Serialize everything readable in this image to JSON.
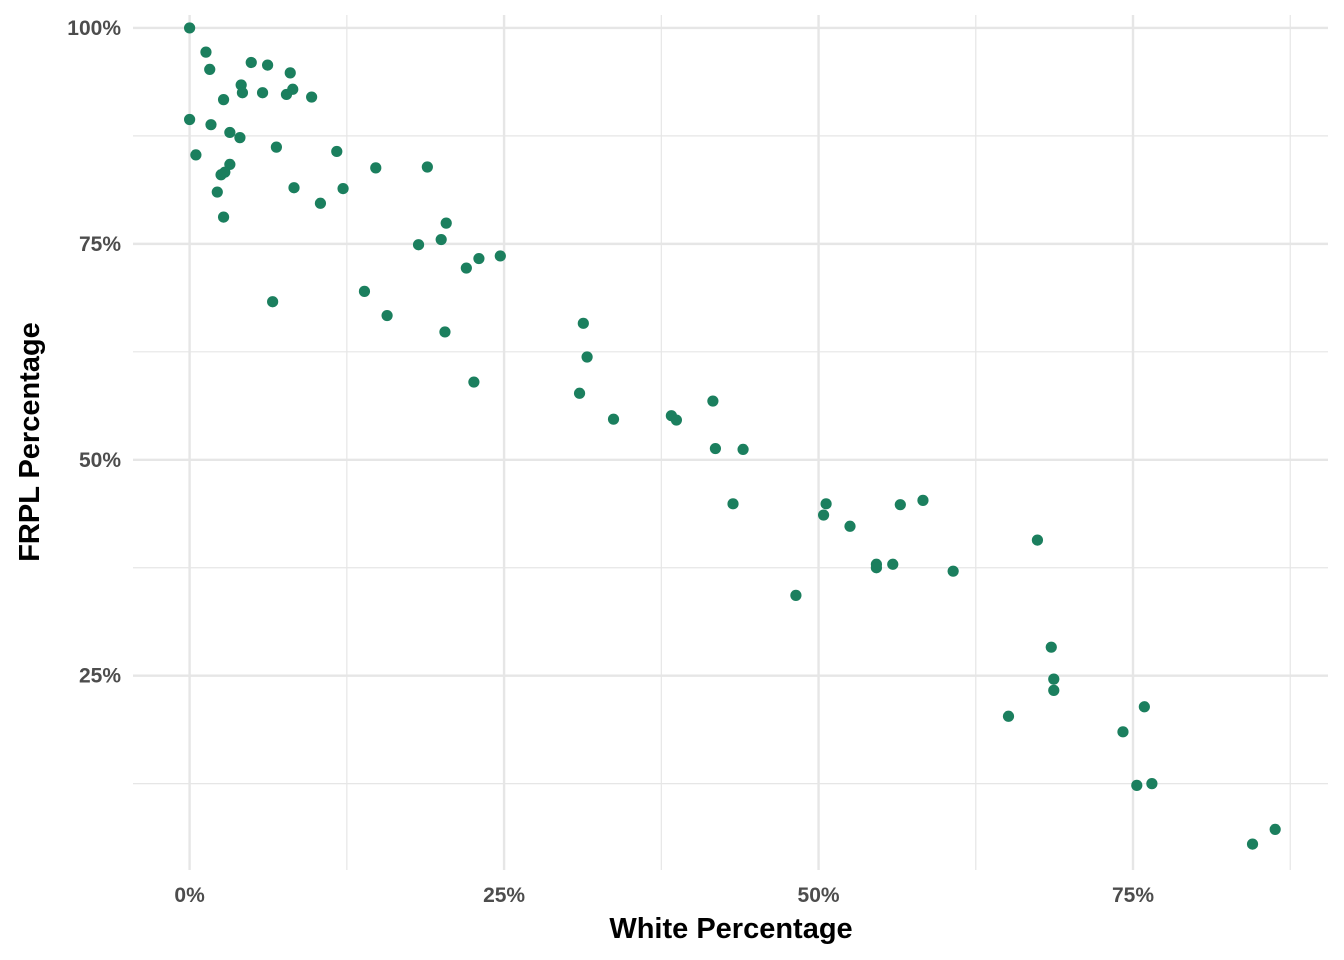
{
  "chart_data": {
    "type": "scatter",
    "xlabel": "White Percentage",
    "ylabel": "FRPL Percentage",
    "xlim": [
      -0.045,
      0.905
    ],
    "ylim": [
      0.025,
      1.015
    ],
    "x_ticks": [
      0,
      0.25,
      0.5,
      0.75
    ],
    "x_tick_labels": [
      "0%",
      "25%",
      "50%",
      "75%"
    ],
    "y_ticks": [
      0.25,
      0.5,
      0.75,
      1.0
    ],
    "y_tick_labels": [
      "25%",
      "50%",
      "75%",
      "100%"
    ],
    "grid": true,
    "point_color": "#1b7f5e",
    "gridline_color": "#e6e6e6",
    "points": [
      {
        "x": 0.0,
        "y": 1.0
      },
      {
        "x": 0.013,
        "y": 0.972
      },
      {
        "x": 0.016,
        "y": 0.952
      },
      {
        "x": 0.049,
        "y": 0.96
      },
      {
        "x": 0.062,
        "y": 0.957
      },
      {
        "x": 0.08,
        "y": 0.948
      },
      {
        "x": 0.041,
        "y": 0.934
      },
      {
        "x": 0.042,
        "y": 0.925
      },
      {
        "x": 0.058,
        "y": 0.925
      },
      {
        "x": 0.077,
        "y": 0.923
      },
      {
        "x": 0.082,
        "y": 0.929
      },
      {
        "x": 0.097,
        "y": 0.92
      },
      {
        "x": 0.027,
        "y": 0.917
      },
      {
        "x": 0.0,
        "y": 0.894
      },
      {
        "x": 0.017,
        "y": 0.888
      },
      {
        "x": 0.032,
        "y": 0.879
      },
      {
        "x": 0.04,
        "y": 0.873
      },
      {
        "x": 0.069,
        "y": 0.862
      },
      {
        "x": 0.005,
        "y": 0.853
      },
      {
        "x": 0.117,
        "y": 0.857
      },
      {
        "x": 0.032,
        "y": 0.842
      },
      {
        "x": 0.148,
        "y": 0.838
      },
      {
        "x": 0.189,
        "y": 0.839
      },
      {
        "x": 0.025,
        "y": 0.83
      },
      {
        "x": 0.028,
        "y": 0.833
      },
      {
        "x": 0.083,
        "y": 0.815
      },
      {
        "x": 0.122,
        "y": 0.814
      },
      {
        "x": 0.022,
        "y": 0.81
      },
      {
        "x": 0.104,
        "y": 0.797
      },
      {
        "x": 0.027,
        "y": 0.781
      },
      {
        "x": 0.204,
        "y": 0.774
      },
      {
        "x": 0.2,
        "y": 0.755
      },
      {
        "x": 0.182,
        "y": 0.749
      },
      {
        "x": 0.247,
        "y": 0.736
      },
      {
        "x": 0.23,
        "y": 0.733
      },
      {
        "x": 0.22,
        "y": 0.722
      },
      {
        "x": 0.139,
        "y": 0.695
      },
      {
        "x": 0.066,
        "y": 0.683
      },
      {
        "x": 0.157,
        "y": 0.667
      },
      {
        "x": 0.203,
        "y": 0.648
      },
      {
        "x": 0.313,
        "y": 0.658
      },
      {
        "x": 0.316,
        "y": 0.619
      },
      {
        "x": 0.226,
        "y": 0.59
      },
      {
        "x": 0.31,
        "y": 0.577
      },
      {
        "x": 0.416,
        "y": 0.568
      },
      {
        "x": 0.337,
        "y": 0.547
      },
      {
        "x": 0.383,
        "y": 0.551
      },
      {
        "x": 0.387,
        "y": 0.546
      },
      {
        "x": 0.418,
        "y": 0.513
      },
      {
        "x": 0.44,
        "y": 0.512
      },
      {
        "x": 0.432,
        "y": 0.449
      },
      {
        "x": 0.506,
        "y": 0.449
      },
      {
        "x": 0.504,
        "y": 0.436
      },
      {
        "x": 0.525,
        "y": 0.423
      },
      {
        "x": 0.565,
        "y": 0.448
      },
      {
        "x": 0.583,
        "y": 0.453
      },
      {
        "x": 0.546,
        "y": 0.379
      },
      {
        "x": 0.546,
        "y": 0.375
      },
      {
        "x": 0.559,
        "y": 0.379
      },
      {
        "x": 0.607,
        "y": 0.371
      },
      {
        "x": 0.674,
        "y": 0.407
      },
      {
        "x": 0.482,
        "y": 0.343
      },
      {
        "x": 0.685,
        "y": 0.283
      },
      {
        "x": 0.687,
        "y": 0.246
      },
      {
        "x": 0.687,
        "y": 0.233
      },
      {
        "x": 0.651,
        "y": 0.203
      },
      {
        "x": 0.759,
        "y": 0.214
      },
      {
        "x": 0.742,
        "y": 0.185
      },
      {
        "x": 0.753,
        "y": 0.123
      },
      {
        "x": 0.765,
        "y": 0.125
      },
      {
        "x": 0.845,
        "y": 0.055
      },
      {
        "x": 0.863,
        "y": 0.072
      }
    ]
  }
}
